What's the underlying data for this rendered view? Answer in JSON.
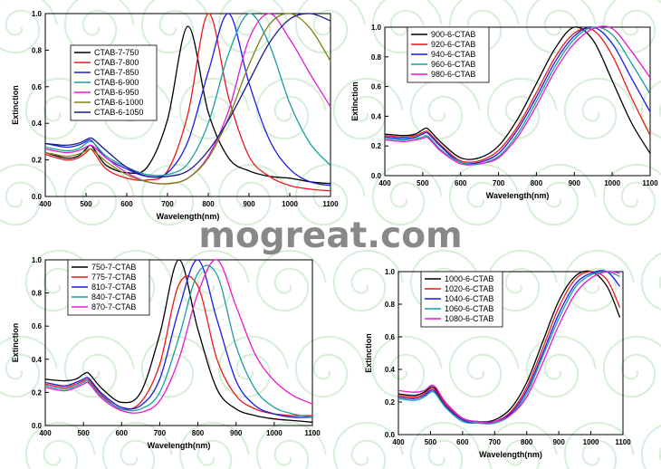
{
  "watermark": "mogreat.com",
  "colors": {
    "background_swirl": "#d6efd6"
  },
  "chart_data": [
    {
      "type": "line",
      "title": "",
      "xlabel": "Wavelength(nm)",
      "ylabel": "Extinction",
      "xlim": [
        400,
        1100
      ],
      "ylim": [
        0,
        1.0
      ],
      "xticks": [
        400,
        500,
        600,
        700,
        800,
        900,
        1000,
        1100
      ],
      "yticks": [
        0.0,
        0.2,
        0.4,
        0.6,
        0.8,
        1.0
      ],
      "xtick_labels": [
        "400",
        "500",
        "600",
        "700",
        "800",
        "900",
        "1000",
        "1100"
      ],
      "ytick_labels": [
        "0.0",
        "0.2",
        "0.4",
        "0.6",
        "0.8",
        "1.0"
      ],
      "legend_position": "center-left",
      "x": [
        400,
        450,
        480,
        500,
        510,
        520,
        550,
        600,
        650,
        700,
        750,
        800,
        850,
        900,
        950,
        1000,
        1050,
        1100
      ],
      "series": [
        {
          "name": "CTAB-7-750",
          "color": "#000000",
          "values": [
            0.24,
            0.21,
            0.22,
            0.26,
            0.28,
            0.26,
            0.17,
            0.13,
            0.16,
            0.42,
            0.93,
            0.46,
            0.21,
            0.14,
            0.11,
            0.1,
            0.08,
            0.07
          ]
        },
        {
          "name": "CTAB-7-800",
          "color": "#e8191b",
          "values": [
            0.23,
            0.2,
            0.21,
            0.24,
            0.26,
            0.24,
            0.15,
            0.1,
            0.09,
            0.14,
            0.45,
            1.0,
            0.54,
            0.22,
            0.11,
            0.06,
            0.04,
            0.03
          ]
        },
        {
          "name": "CTAB-7-850",
          "color": "#1a1ae6",
          "values": [
            0.29,
            0.27,
            0.28,
            0.3,
            0.31,
            0.29,
            0.21,
            0.15,
            0.11,
            0.13,
            0.3,
            0.68,
            1.0,
            0.62,
            0.31,
            0.15,
            0.08,
            0.06
          ]
        },
        {
          "name": "CTAB-6-900",
          "color": "#1a9e9e",
          "values": [
            0.27,
            0.25,
            0.26,
            0.29,
            0.3,
            0.29,
            0.22,
            0.16,
            0.12,
            0.12,
            0.18,
            0.4,
            0.78,
            1.0,
            0.83,
            0.51,
            0.29,
            0.17
          ]
        },
        {
          "name": "CTAB-6-950",
          "color": "#e619d0",
          "values": [
            0.26,
            0.24,
            0.25,
            0.27,
            0.28,
            0.27,
            0.21,
            0.13,
            0.08,
            0.07,
            0.1,
            0.22,
            0.47,
            0.86,
            1.0,
            0.86,
            0.67,
            0.49
          ]
        },
        {
          "name": "CTAB-6-1000",
          "color": "#808014",
          "values": [
            0.24,
            0.22,
            0.23,
            0.25,
            0.26,
            0.25,
            0.19,
            0.12,
            0.08,
            0.07,
            0.1,
            0.21,
            0.43,
            0.72,
            0.94,
            1.0,
            0.92,
            0.74
          ]
        },
        {
          "name": "CTAB-6-1050",
          "color": "#1a1a8c",
          "values": [
            0.29,
            0.28,
            0.29,
            0.31,
            0.32,
            0.31,
            0.25,
            0.16,
            0.11,
            0.11,
            0.14,
            0.25,
            0.42,
            0.63,
            0.84,
            0.97,
            1.0,
            0.96
          ]
        }
      ]
    },
    {
      "type": "line",
      "title": "",
      "xlabel": "Wavelength(nm)",
      "ylabel": "Extinction",
      "xlim": [
        400,
        1100
      ],
      "ylim": [
        0.0,
        1.0
      ],
      "xticks": [
        400,
        500,
        600,
        700,
        800,
        900,
        1000,
        1100
      ],
      "yticks": [
        0.0,
        0.2,
        0.4,
        0.6,
        0.8,
        1.0
      ],
      "xtick_labels": [
        "400",
        "500",
        "600",
        "700",
        "800",
        "900",
        "1000",
        "1100"
      ],
      "ytick_labels": [
        "0.0",
        "0.2",
        "0.4",
        "0.6",
        "0.8",
        "1.0"
      ],
      "legend_position": "top-left",
      "x": [
        400,
        450,
        480,
        500,
        510,
        520,
        550,
        600,
        650,
        700,
        750,
        800,
        850,
        900,
        950,
        1000,
        1050,
        1100
      ],
      "series": [
        {
          "name": "900-6-CTAB",
          "color": "#000000",
          "values": [
            0.28,
            0.27,
            0.28,
            0.31,
            0.32,
            0.3,
            0.22,
            0.12,
            0.12,
            0.2,
            0.38,
            0.62,
            0.86,
            1.0,
            0.91,
            0.64,
            0.36,
            0.15
          ]
        },
        {
          "name": "920-6-CTAB",
          "color": "#e8191b",
          "values": [
            0.27,
            0.26,
            0.27,
            0.29,
            0.3,
            0.28,
            0.2,
            0.1,
            0.1,
            0.17,
            0.33,
            0.56,
            0.8,
            0.96,
            0.98,
            0.81,
            0.53,
            0.27
          ]
        },
        {
          "name": "940-6-CTAB",
          "color": "#1a1ae6",
          "values": [
            0.26,
            0.25,
            0.26,
            0.28,
            0.29,
            0.27,
            0.19,
            0.09,
            0.09,
            0.15,
            0.31,
            0.53,
            0.77,
            0.94,
            1.0,
            0.89,
            0.66,
            0.43
          ]
        },
        {
          "name": "960-6-CTAB",
          "color": "#1a9e9e",
          "values": [
            0.25,
            0.24,
            0.25,
            0.26,
            0.27,
            0.25,
            0.17,
            0.09,
            0.08,
            0.13,
            0.28,
            0.5,
            0.74,
            0.92,
            1.0,
            0.95,
            0.76,
            0.55
          ]
        },
        {
          "name": "980-6-CTAB",
          "color": "#e619d0",
          "values": [
            0.24,
            0.23,
            0.24,
            0.25,
            0.26,
            0.24,
            0.16,
            0.08,
            0.08,
            0.12,
            0.26,
            0.47,
            0.71,
            0.89,
            0.99,
            0.99,
            0.84,
            0.66
          ]
        }
      ]
    },
    {
      "type": "line",
      "title": "",
      "xlabel": "Wavelength(nm)",
      "ylabel": "Extinction",
      "xlim": [
        400,
        1100
      ],
      "ylim": [
        0.0,
        1.0
      ],
      "xticks": [
        400,
        500,
        600,
        700,
        800,
        900,
        1000,
        1100
      ],
      "yticks": [
        0.0,
        0.2,
        0.4,
        0.6,
        0.8,
        1.0
      ],
      "xtick_labels": [
        "400",
        "500",
        "600",
        "700",
        "800",
        "900",
        "1000",
        "1100"
      ],
      "ytick_labels": [
        "0.0",
        "0.2",
        "0.4",
        "0.6",
        "0.8",
        "1.0"
      ],
      "legend_position": "top-left",
      "x": [
        400,
        450,
        480,
        500,
        510,
        520,
        550,
        600,
        650,
        700,
        750,
        800,
        850,
        900,
        950,
        1000,
        1050,
        1100
      ],
      "series": [
        {
          "name": "750-7-CTAB",
          "color": "#000000",
          "values": [
            0.28,
            0.27,
            0.28,
            0.31,
            0.32,
            0.3,
            0.22,
            0.14,
            0.2,
            0.55,
            1.0,
            0.58,
            0.22,
            0.1,
            0.06,
            0.04,
            0.03,
            0.02
          ]
        },
        {
          "name": "775-7-CTAB",
          "color": "#e8191b",
          "values": [
            0.25,
            0.23,
            0.25,
            0.27,
            0.28,
            0.26,
            0.18,
            0.1,
            0.14,
            0.37,
            0.85,
            0.84,
            0.4,
            0.18,
            0.1,
            0.07,
            0.06,
            0.06
          ]
        },
        {
          "name": "810-7-CTAB",
          "color": "#1a1ae6",
          "values": [
            0.26,
            0.24,
            0.26,
            0.28,
            0.29,
            0.27,
            0.19,
            0.11,
            0.12,
            0.28,
            0.7,
            1.0,
            0.64,
            0.27,
            0.12,
            0.07,
            0.05,
            0.05
          ]
        },
        {
          "name": "840-7-CTAB",
          "color": "#1a9e9e",
          "values": [
            0.24,
            0.22,
            0.24,
            0.26,
            0.27,
            0.25,
            0.17,
            0.1,
            0.1,
            0.2,
            0.53,
            0.92,
            0.91,
            0.48,
            0.22,
            0.11,
            0.07,
            0.05
          ]
        },
        {
          "name": "870-7-CTAB",
          "color": "#e619d0",
          "values": [
            0.23,
            0.21,
            0.23,
            0.25,
            0.26,
            0.24,
            0.16,
            0.09,
            0.08,
            0.15,
            0.4,
            0.8,
            1.0,
            0.72,
            0.43,
            0.27,
            0.18,
            0.13
          ]
        }
      ]
    },
    {
      "type": "line",
      "title": "",
      "xlabel": "Wavelength(nm)",
      "ylabel": "Extinction",
      "xlim": [
        400,
        1100
      ],
      "ylim": [
        0.0,
        1.0
      ],
      "xticks": [
        400,
        500,
        600,
        700,
        800,
        900,
        1000,
        1100
      ],
      "yticks": [
        0.0,
        0.2,
        0.4,
        0.6,
        0.8,
        1.0
      ],
      "xtick_labels": [
        "400",
        "500",
        "600",
        "700",
        "800",
        "900",
        "1000",
        "1100"
      ],
      "ytick_labels": [
        "0.0",
        "0.2",
        "0.4",
        "0.6",
        "0.8",
        "1.0"
      ],
      "legend_position": "top-left",
      "x": [
        400,
        450,
        480,
        500,
        510,
        520,
        550,
        600,
        650,
        700,
        750,
        800,
        850,
        900,
        950,
        1000,
        1050,
        1090
      ],
      "series": [
        {
          "name": "1000-6-CTAB",
          "color": "#000000",
          "values": [
            0.25,
            0.24,
            0.26,
            0.29,
            0.29,
            0.27,
            0.19,
            0.1,
            0.08,
            0.09,
            0.16,
            0.32,
            0.57,
            0.82,
            0.97,
            1.0,
            0.91,
            0.72
          ]
        },
        {
          "name": "1020-6-CTAB",
          "color": "#e8191b",
          "values": [
            0.24,
            0.23,
            0.25,
            0.28,
            0.28,
            0.26,
            0.18,
            0.09,
            0.07,
            0.08,
            0.14,
            0.29,
            0.53,
            0.78,
            0.95,
            1.0,
            0.95,
            0.78
          ]
        },
        {
          "name": "1040-6-CTAB",
          "color": "#1a1ae6",
          "values": [
            0.23,
            0.22,
            0.24,
            0.27,
            0.27,
            0.25,
            0.17,
            0.09,
            0.07,
            0.08,
            0.13,
            0.27,
            0.5,
            0.74,
            0.92,
            0.99,
            1.0,
            0.91
          ]
        },
        {
          "name": "1060-6-CTAB",
          "color": "#1a9e9e",
          "values": [
            0.22,
            0.21,
            0.23,
            0.26,
            0.26,
            0.24,
            0.16,
            0.08,
            0.07,
            0.07,
            0.12,
            0.25,
            0.48,
            0.71,
            0.9,
            0.98,
            1.0,
            0.97
          ]
        },
        {
          "name": "1080-6-CTAB",
          "color": "#e619d0",
          "values": [
            0.27,
            0.26,
            0.27,
            0.3,
            0.3,
            0.28,
            0.19,
            0.1,
            0.08,
            0.08,
            0.12,
            0.23,
            0.44,
            0.67,
            0.86,
            0.96,
            1.0,
            0.99
          ]
        }
      ]
    }
  ]
}
